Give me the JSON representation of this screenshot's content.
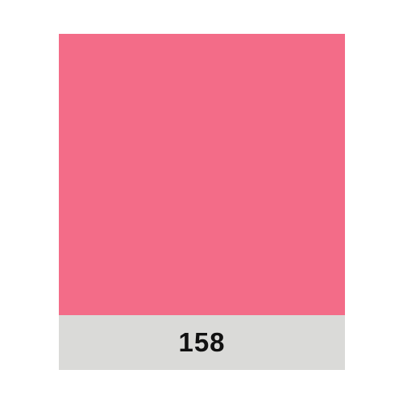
{
  "swatch": {
    "color": "#f36c88",
    "number": "158"
  },
  "strip_color": "#dadad8"
}
